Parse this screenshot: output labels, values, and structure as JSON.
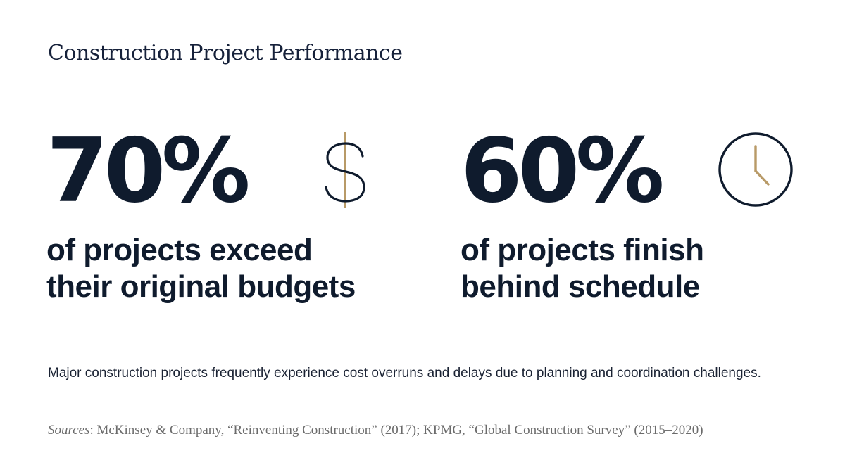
{
  "title": "Construction Project Performance",
  "stats": [
    {
      "value": "70%",
      "caption_line1": "of projects exceed",
      "caption_line2": "their original budgets",
      "icon": "dollar-sign-icon"
    },
    {
      "value": "60%",
      "caption_line1": "of projects finish",
      "caption_line2": "behind schedule",
      "icon": "clock-icon"
    }
  ],
  "description": "Major construction projects frequently experience cost overruns and delays due to planning and coordination challenges.",
  "sources": {
    "label": "Sources",
    "text": ": McKinsey & Company, “Reinventing Construction” (2017); KPMG, “Global Construction Survey” (2015–2020)"
  },
  "colors": {
    "text_dark": "#0f1b2d",
    "accent_gold": "#b89a67",
    "muted_gray": "#6b6b6b"
  }
}
